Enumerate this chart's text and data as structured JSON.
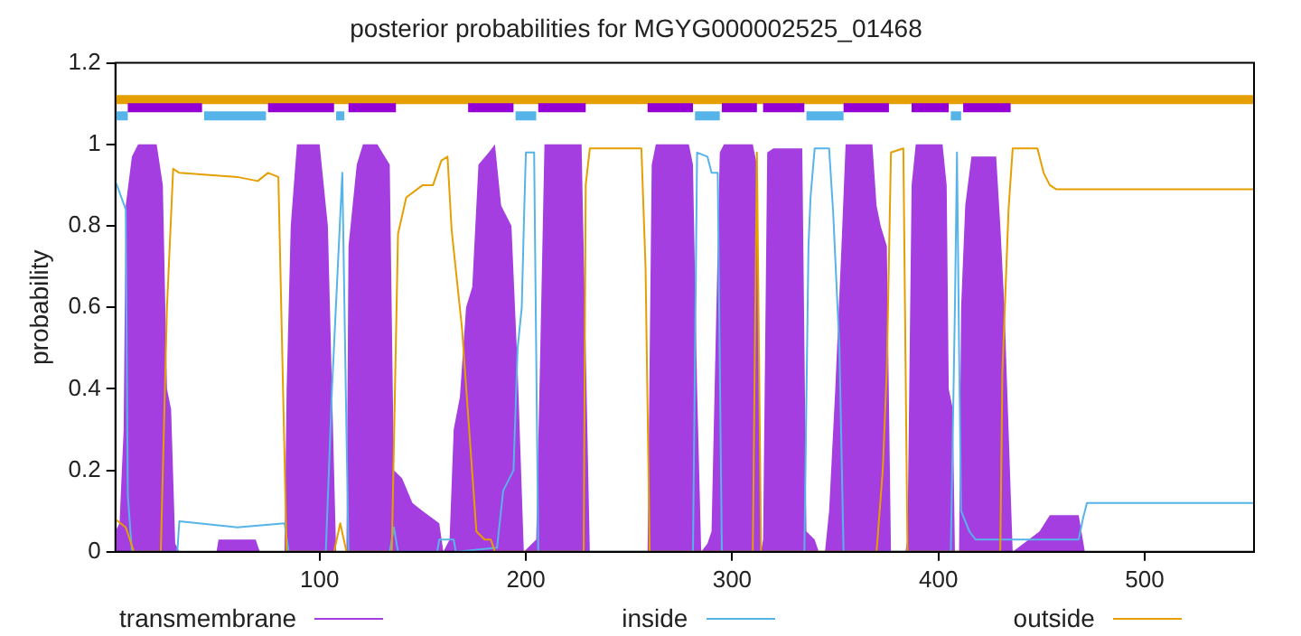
{
  "chart_data": {
    "type": "line",
    "title": "posterior probabilities for MGYG000002525_01468",
    "ylabel": "probability",
    "xlim": [
      1,
      553
    ],
    "xticks": [
      100,
      200,
      300,
      400,
      500
    ],
    "ylim": [
      0,
      1.2
    ],
    "yticks": [
      0,
      0.2,
      0.4,
      0.6,
      0.8,
      1,
      1.2
    ],
    "grid": false,
    "legend": "bottom",
    "series": [
      {
        "color": "#e69f00",
        "x": [
          1,
          553
        ],
        "values": [
          1.11,
          1.11
        ]
      },
      {
        "color": "#56b4e9",
        "x": [
          1,
          7
        ],
        "values": [
          1.07,
          1.07
        ]
      },
      {
        "color": "#56b4e9",
        "x": [
          44,
          74
        ],
        "values": [
          1.07,
          1.07
        ]
      },
      {
        "color": "#56b4e9",
        "x": [
          108,
          112
        ],
        "values": [
          1.07,
          1.07
        ]
      },
      {
        "color": "#56b4e9",
        "x": [
          195,
          205
        ],
        "values": [
          1.07,
          1.07
        ]
      },
      {
        "color": "#56b4e9",
        "x": [
          282,
          294
        ],
        "values": [
          1.07,
          1.07
        ]
      },
      {
        "color": "#56b4e9",
        "x": [
          336,
          354
        ],
        "values": [
          1.07,
          1.07
        ]
      },
      {
        "color": "#56b4e9",
        "x": [
          406,
          411
        ],
        "values": [
          1.07,
          1.07
        ]
      },
      {
        "color": "#9400d3",
        "x": [
          7,
          43
        ],
        "values": [
          1.09,
          1.09
        ]
      },
      {
        "color": "#9400d3",
        "x": [
          75,
          107
        ],
        "values": [
          1.09,
          1.09
        ]
      },
      {
        "color": "#9400d3",
        "x": [
          114,
          137
        ],
        "values": [
          1.09,
          1.09
        ]
      },
      {
        "color": "#9400d3",
        "x": [
          172,
          194
        ],
        "values": [
          1.09,
          1.09
        ]
      },
      {
        "color": "#9400d3",
        "x": [
          206,
          229
        ],
        "values": [
          1.09,
          1.09
        ]
      },
      {
        "color": "#9400d3",
        "x": [
          259,
          281
        ],
        "values": [
          1.09,
          1.09
        ]
      },
      {
        "color": "#9400d3",
        "x": [
          295,
          312
        ],
        "values": [
          1.09,
          1.09
        ]
      },
      {
        "color": "#9400d3",
        "x": [
          315,
          335
        ],
        "values": [
          1.09,
          1.09
        ]
      },
      {
        "color": "#9400d3",
        "x": [
          354,
          376
        ],
        "values": [
          1.09,
          1.09
        ]
      },
      {
        "color": "#9400d3",
        "x": [
          387,
          405
        ],
        "values": [
          1.09,
          1.09
        ]
      },
      {
        "color": "#9400d3",
        "x": [
          412,
          435
        ],
        "values": [
          1.09,
          1.09
        ]
      },
      {
        "name": "transmembrane",
        "type": "area",
        "color": "#a53ee0",
        "x": [
          1,
          3,
          5,
          6,
          9,
          12,
          21,
          24,
          26,
          28,
          30,
          32,
          50,
          51,
          69,
          71,
          83,
          84,
          86,
          89,
          100,
          104,
          106,
          108,
          113,
          114,
          118,
          121,
          128,
          134,
          136,
          140,
          145,
          150,
          158,
          160,
          163,
          165,
          168,
          171,
          174,
          177,
          182,
          185,
          188,
          193,
          196,
          199,
          205,
          207,
          209,
          227,
          229,
          231,
          259,
          261,
          263,
          279,
          281,
          283,
          285,
          288,
          290,
          294,
          296,
          310,
          312,
          314,
          315,
          317,
          320,
          334,
          336,
          340,
          342,
          345,
          347,
          350,
          353,
          355,
          364,
          368,
          370,
          372,
          375,
          377,
          384,
          385,
          387,
          389,
          402,
          404,
          405,
          407,
          408,
          410,
          411,
          413,
          416,
          428,
          430,
          432,
          434,
          436,
          449,
          454,
          468,
          471,
          553
        ],
        "values": [
          0.05,
          0.07,
          0.3,
          0.85,
          0.97,
          1,
          1,
          0.9,
          0.4,
          0.35,
          0.02,
          0,
          0,
          0.03,
          0.03,
          0,
          0,
          0.4,
          0.8,
          1,
          1,
          0.8,
          0.4,
          0,
          0,
          0.75,
          0.95,
          1,
          1,
          0.95,
          0.2,
          0.18,
          0.12,
          0.1,
          0.07,
          0,
          0.03,
          0.3,
          0.38,
          0.6,
          0.65,
          0.95,
          0.98,
          1,
          0.85,
          0.8,
          0.45,
          0,
          0.03,
          0.5,
          1,
          1,
          0.5,
          0,
          0,
          0.95,
          1,
          1,
          0.95,
          0.4,
          0,
          0.02,
          0.05,
          0.98,
          1,
          1,
          0.95,
          0,
          0.03,
          0.98,
          0.99,
          0.99,
          0.05,
          0.03,
          0,
          0,
          0.1,
          0.4,
          0.75,
          1,
          1,
          1,
          0.85,
          0.8,
          0.75,
          0,
          0,
          0.03,
          0.9,
          1,
          1,
          0.9,
          0.4,
          0.35,
          0,
          0,
          0.6,
          0.85,
          0.97,
          0.97,
          0.8,
          0.6,
          0.3,
          0,
          0.05,
          0.09,
          0.09,
          0,
          0
        ]
      },
      {
        "name": "inside",
        "color": "#56b4e9",
        "x": [
          1,
          6,
          7,
          9,
          31,
          32,
          60,
          83,
          85,
          103,
          106,
          111,
          113,
          114,
          134,
          136,
          138,
          157,
          158,
          165,
          166,
          186,
          189,
          194,
          196,
          198,
          199,
          200,
          204,
          206,
          281,
          283,
          288,
          290,
          293,
          295,
          335,
          337,
          338,
          340,
          347,
          349,
          352,
          354,
          406,
          408,
          409,
          410,
          411,
          415,
          418,
          468,
          470,
          472,
          553
        ],
        "values": [
          0.91,
          0.84,
          0.14,
          0,
          0,
          0.075,
          0.06,
          0.07,
          0,
          0,
          0.4,
          0.93,
          0.3,
          0,
          0,
          0.06,
          0,
          0,
          0.03,
          0.03,
          0,
          0.01,
          0.15,
          0.2,
          0.5,
          0.6,
          0.8,
          0.98,
          0.98,
          0,
          0,
          0.98,
          0.97,
          0.93,
          0.93,
          0,
          0,
          0.75,
          0.87,
          0.99,
          0.99,
          0.83,
          0.5,
          0,
          0,
          0.6,
          0.98,
          0.5,
          0.1,
          0.05,
          0.03,
          0.03,
          0.08,
          0.12,
          0.12
        ]
      },
      {
        "name": "outside",
        "color": "#e69f00",
        "x": [
          1,
          6,
          10,
          23,
          26,
          29,
          32,
          60,
          70,
          75,
          80,
          84,
          107,
          110,
          113,
          135,
          138,
          142,
          150,
          155,
          159,
          162,
          164,
          169,
          176,
          180,
          183,
          185,
          228,
          229,
          231,
          256,
          258,
          260,
          310,
          312,
          314,
          370,
          373,
          375,
          377,
          383,
          385,
          430,
          431,
          434,
          436,
          448,
          451,
          454,
          457,
          553
        ],
        "values": [
          0.08,
          0.06,
          0,
          0,
          0.6,
          0.94,
          0.93,
          0.92,
          0.91,
          0.93,
          0.92,
          0,
          0,
          0.07,
          0,
          0,
          0.78,
          0.87,
          0.9,
          0.9,
          0.96,
          0.97,
          0.79,
          0.55,
          0.05,
          0.03,
          0.03,
          0,
          0,
          0.9,
          0.99,
          0.99,
          0.7,
          0,
          0,
          0.98,
          0,
          0,
          0.2,
          0.45,
          0.98,
          0.99,
          0,
          0,
          0.44,
          0.84,
          0.99,
          0.99,
          0.93,
          0.9,
          0.89,
          0.89
        ]
      }
    ]
  }
}
